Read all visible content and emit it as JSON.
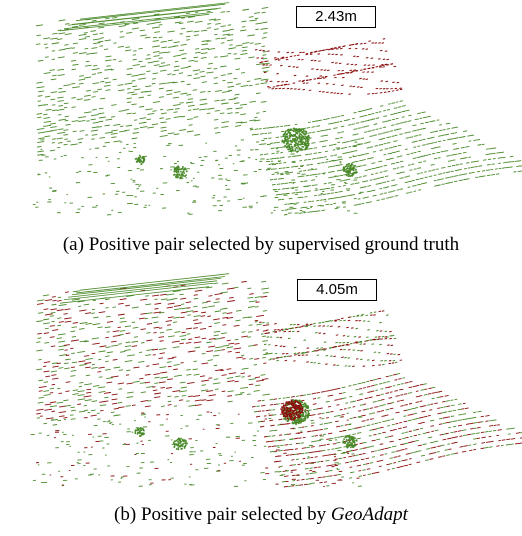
{
  "figure": {
    "panels": [
      {
        "distance_label": "2.43m",
        "caption_prefix": "(a) Positive pair selected by supervised ground truth",
        "caption_method": "",
        "colors": {
          "query": "#4a8a2a",
          "positive": "#8b1010"
        }
      },
      {
        "distance_label": "4.05m",
        "caption_prefix": "(b) Positive pair selected by ",
        "caption_method": "GeoAdapt",
        "colors": {
          "query": "#4a8a2a",
          "positive": "#8b1010"
        }
      }
    ]
  }
}
